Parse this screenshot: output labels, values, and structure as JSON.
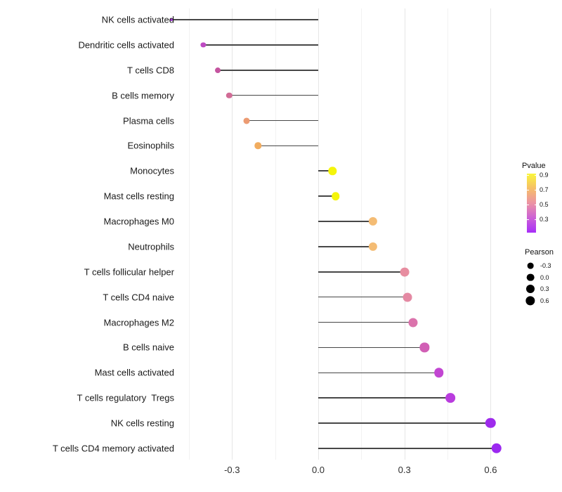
{
  "chart_data": {
    "type": "lollipop",
    "title": "",
    "xlabel": "",
    "ylabel": "",
    "xlim": [
      -0.57,
      0.68
    ],
    "grid": "vertical-only",
    "x_ticks": [
      -0.3,
      0.0,
      0.3,
      0.6
    ],
    "x_tick_labels": [
      "-0.3",
      "0.0",
      "0.3",
      "0.6"
    ],
    "x_minor_ticks": [
      -0.45,
      -0.15,
      0.15,
      0.45
    ],
    "stem_baseline": 0.0,
    "points": [
      {
        "label": "NK cells activated",
        "pearson": -0.51,
        "color": "#A238D4"
      },
      {
        "label": "Dendritic cells activated",
        "pearson": -0.4,
        "color": "#BD4AC2"
      },
      {
        "label": "T cells CD8",
        "pearson": -0.35,
        "color": "#C4549F"
      },
      {
        "label": "B cells memory",
        "pearson": -0.31,
        "color": "#D16C96"
      },
      {
        "label": "Plasma cells",
        "pearson": -0.25,
        "color": "#EC9B72"
      },
      {
        "label": "Eosinophils",
        "pearson": -0.21,
        "color": "#F1AC5F"
      },
      {
        "label": "Monocytes",
        "pearson": 0.05,
        "color": "#F5F50A"
      },
      {
        "label": "Mast cells resting",
        "pearson": 0.06,
        "color": "#F5F50A"
      },
      {
        "label": "Macrophages M0",
        "pearson": 0.19,
        "color": "#F4BC74"
      },
      {
        "label": "Neutrophils",
        "pearson": 0.19,
        "color": "#F4BC74"
      },
      {
        "label": "T cells follicular helper",
        "pearson": 0.3,
        "color": "#E78DA0"
      },
      {
        "label": "T cells CD4 naive",
        "pearson": 0.31,
        "color": "#E489A3"
      },
      {
        "label": "Macrophages M2",
        "pearson": 0.33,
        "color": "#DB73AC"
      },
      {
        "label": "B cells naive",
        "pearson": 0.37,
        "color": "#D15FB5"
      },
      {
        "label": "Mast cells activated",
        "pearson": 0.42,
        "color": "#C246D2"
      },
      {
        "label": "T cells regulatory  Tregs",
        "pearson": 0.46,
        "color": "#B93CDE"
      },
      {
        "label": "NK cells resting",
        "pearson": 0.6,
        "color": "#9E2BEC"
      },
      {
        "label": "T cells CD4 memory activated",
        "pearson": 0.62,
        "color": "#9B28F0"
      }
    ],
    "legend": {
      "pvalue": {
        "title": "Pvalue",
        "tick_labels": [
          "0.9",
          "0.7",
          "0.5",
          "0.3"
        ],
        "gradient_colors": [
          "#F9F63B",
          "#F6BE68",
          "#EC93A4",
          "#CC61D6",
          "#A72EF8"
        ]
      },
      "pearson": {
        "title": "Pearson",
        "entries": [
          {
            "label": "-0.3",
            "size": 8.7
          },
          {
            "label": "0.0",
            "size": 10.7
          },
          {
            "label": "0.3",
            "size": 12.0
          },
          {
            "label": "0.6",
            "size": 13.3
          }
        ]
      }
    }
  }
}
